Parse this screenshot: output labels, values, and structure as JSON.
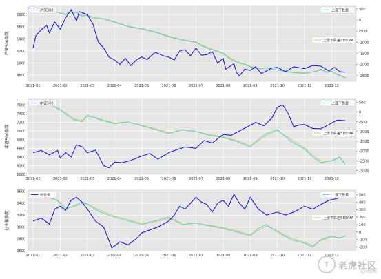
{
  "watermark": {
    "title": "老虎社区",
    "sub": "@闲闲"
  },
  "chart_data": [
    {
      "type": "line",
      "index_label": "沪深300",
      "ylabel_left": "沪深300指数",
      "ylim_left": [
        4700,
        5950
      ],
      "yticks_left": [
        4800,
        5000,
        5200,
        5400,
        5600,
        5800
      ],
      "ylim_right": [
        -2750,
        650
      ],
      "yticks_right": [
        500,
        0,
        -500,
        -1000,
        -1500,
        -2000,
        -2500
      ],
      "x_ticks": [
        "2021-01",
        "2021-02",
        "2021-03",
        "2021-04",
        "2021-05",
        "2021-06",
        "2021-07",
        "2021-08",
        "2021-09",
        "2021-10",
        "2021-11",
        "2021-12"
      ],
      "legend": [
        "上涨下跌差",
        "上涨下跌差5日EMA"
      ],
      "grid": true,
      "index_series": {
        "name": "沪深300",
        "x": [
          0.0,
          0.1,
          0.3,
          0.5,
          0.6,
          0.8,
          1.0,
          1.2,
          1.4,
          1.6,
          1.7,
          2.0,
          2.2,
          2.4,
          2.6,
          2.8,
          3.0,
          3.2,
          3.4,
          3.6,
          3.8,
          4.0,
          4.2,
          4.5,
          4.8,
          5.0,
          5.2,
          5.4,
          5.6,
          5.8,
          6.0,
          6.2,
          6.4,
          6.6,
          6.8,
          7.0,
          7.1,
          7.2,
          7.4,
          7.5,
          7.6,
          7.8,
          8.0,
          8.2,
          8.4,
          8.6,
          8.8,
          9.0,
          9.3,
          9.6,
          10.0,
          10.3,
          10.6,
          10.9,
          11.1,
          11.3,
          11.5
        ],
        "values": [
          5250,
          5450,
          5550,
          5620,
          5500,
          5680,
          5560,
          5750,
          5880,
          5700,
          5850,
          5800,
          5650,
          5350,
          5250,
          5100,
          5050,
          4980,
          5080,
          4960,
          5050,
          5100,
          5060,
          5180,
          5120,
          5100,
          5050,
          5200,
          5220,
          5120,
          5250,
          5130,
          5140,
          5190,
          5000,
          5080,
          4900,
          4930,
          4990,
          4840,
          4790,
          4900,
          4880,
          4940,
          4830,
          4870,
          4920,
          4930,
          4860,
          4940,
          4910,
          4960,
          4950,
          4870,
          4930,
          4860,
          4850
        ]
      },
      "diff_series": {
        "name": "上涨下跌差",
        "x": [
          0.0,
          0.2,
          0.4,
          0.6,
          0.8,
          1.0,
          1.2,
          1.4,
          1.6,
          1.8,
          2.0,
          2.3,
          2.6,
          3.0,
          3.5,
          4.0,
          4.5,
          5.0,
          5.5,
          6.0,
          6.2,
          6.5,
          7.0,
          7.2,
          7.5,
          7.8,
          8.0,
          8.3,
          8.6,
          9.0,
          9.5,
          10.0,
          10.4,
          10.6,
          10.8,
          11.0,
          11.2,
          11.5
        ],
        "values": [
          550,
          480,
          520,
          320,
          400,
          300,
          240,
          380,
          330,
          180,
          200,
          80,
          50,
          -100,
          -300,
          -400,
          -550,
          -750,
          -900,
          -1000,
          -1150,
          -1300,
          -1500,
          -1700,
          -1900,
          -2000,
          -2100,
          -2200,
          -2150,
          -2250,
          -2350,
          -2400,
          -2300,
          -2200,
          -2350,
          -2300,
          -2450,
          -2600
        ]
      },
      "ema_series": {
        "name": "上涨下跌差5日EMA",
        "x": [
          0.0,
          0.2,
          0.4,
          0.6,
          0.8,
          1.0,
          1.2,
          1.4,
          1.6,
          1.8,
          2.0,
          2.3,
          2.6,
          3.0,
          3.5,
          4.0,
          4.5,
          5.0,
          5.5,
          6.0,
          6.2,
          6.5,
          7.0,
          7.2,
          7.5,
          7.8,
          8.0,
          8.3,
          8.6,
          9.0,
          9.5,
          10.0,
          10.4,
          10.6,
          10.8,
          11.0,
          11.2,
          11.5
        ],
        "values": [
          520,
          500,
          500,
          360,
          380,
          320,
          260,
          350,
          330,
          210,
          210,
          100,
          60,
          -80,
          -280,
          -380,
          -530,
          -720,
          -880,
          -980,
          -1120,
          -1270,
          -1470,
          -1660,
          -1860,
          -1970,
          -2070,
          -2170,
          -2160,
          -2230,
          -2330,
          -2380,
          -2310,
          -2230,
          -2320,
          -2300,
          -2420,
          -2560
        ]
      }
    },
    {
      "type": "line",
      "index_label": "中证500",
      "ylabel_left": "中证500指数",
      "ylim_left": [
        6000,
        7750
      ],
      "yticks_left": [
        6000,
        6200,
        6400,
        6600,
        6800,
        7000,
        7200,
        7400,
        7600
      ],
      "ylim_right": [
        -3200,
        700
      ],
      "yticks_right": [
        500,
        0,
        -500,
        -1000,
        -1500,
        -2000,
        -2500,
        -3000
      ],
      "x_ticks": [
        "2021-01",
        "2021-02",
        "2021-03",
        "2021-04",
        "2021-05",
        "2021-06",
        "2021-07",
        "2021-08",
        "2021-09",
        "2021-10",
        "2021-11",
        "2021-12"
      ],
      "legend": [
        "上涨下跌差",
        "上涨下跌差5日EMA"
      ],
      "grid": true,
      "index_series": {
        "name": "中证500",
        "x": [
          0.0,
          0.3,
          0.6,
          0.9,
          1.0,
          1.2,
          1.4,
          1.6,
          1.8,
          2.0,
          2.3,
          2.6,
          2.8,
          3.0,
          3.3,
          3.6,
          4.0,
          4.3,
          4.6,
          5.0,
          5.3,
          5.6,
          6.0,
          6.3,
          6.6,
          7.0,
          7.3,
          7.6,
          7.9,
          8.2,
          8.5,
          8.8,
          9.0,
          9.2,
          9.4,
          9.6,
          9.8,
          10.0,
          10.3,
          10.6,
          10.9,
          11.2,
          11.5
        ],
        "values": [
          6500,
          6550,
          6450,
          6550,
          6380,
          6500,
          6400,
          6680,
          6640,
          6500,
          6560,
          6200,
          6150,
          6280,
          6270,
          6320,
          6420,
          6480,
          6350,
          6500,
          6570,
          6630,
          6600,
          6780,
          6720,
          6920,
          6900,
          7000,
          7100,
          7200,
          7120,
          7300,
          7550,
          7600,
          7400,
          7100,
          7140,
          7150,
          7060,
          7050,
          7150,
          7250,
          7240
        ]
      },
      "diff_series": {
        "name": "上涨下跌差",
        "x": [
          0.0,
          0.3,
          0.6,
          0.9,
          1.2,
          1.5,
          1.8,
          2.0,
          2.3,
          2.6,
          3.0,
          3.5,
          4.0,
          4.5,
          5.0,
          5.5,
          6.0,
          6.5,
          7.0,
          7.5,
          8.0,
          8.3,
          8.6,
          9.0,
          9.5,
          10.0,
          10.3,
          10.6,
          11.0,
          11.3,
          11.5
        ],
        "values": [
          350,
          300,
          380,
          200,
          -100,
          -400,
          -500,
          -150,
          -300,
          -450,
          -600,
          -500,
          -700,
          -900,
          -1100,
          -900,
          -1000,
          -1200,
          -1300,
          -1500,
          -1800,
          -1400,
          -1100,
          -900,
          -1500,
          -1900,
          -2300,
          -2600,
          -2500,
          -2300,
          -2700
        ]
      },
      "ema_series": {
        "name": "上涨下跌差5日EMA",
        "x": [
          0.0,
          0.3,
          0.6,
          0.9,
          1.2,
          1.5,
          1.8,
          2.0,
          2.3,
          2.6,
          3.0,
          3.5,
          4.0,
          4.5,
          5.0,
          5.5,
          6.0,
          6.5,
          7.0,
          7.5,
          8.0,
          8.3,
          8.6,
          9.0,
          9.5,
          10.0,
          10.3,
          10.6,
          11.0,
          11.3,
          11.5
        ],
        "values": [
          330,
          310,
          350,
          230,
          -40,
          -330,
          -450,
          -230,
          -280,
          -420,
          -560,
          -510,
          -660,
          -860,
          -1050,
          -930,
          -990,
          -1160,
          -1270,
          -1460,
          -1730,
          -1480,
          -1180,
          -950,
          -1400,
          -1830,
          -2220,
          -2520,
          -2500,
          -2360,
          -2620
        ]
      }
    },
    {
      "type": "line",
      "index_label": "创业板",
      "ylabel_left": "创业板指数",
      "ylim_left": [
        2600,
        3620
      ],
      "yticks_left": [
        2600,
        2800,
        3000,
        3200,
        3400,
        3600
      ],
      "ylim_right": [
        -250,
        560
      ],
      "yticks_right": [
        500,
        400,
        300,
        200,
        100,
        0,
        -100,
        -200
      ],
      "x_ticks": [
        "2021-01",
        "2021-02",
        "2021-03",
        "2021-04",
        "2021-05",
        "2021-06",
        "2021-07",
        "2021-08",
        "2021-09",
        "2021-10",
        "2021-11",
        "2021-12"
      ],
      "legend": [
        "上涨下跌差",
        "上涨下跌差5日EMA"
      ],
      "grid": true,
      "index_series": {
        "name": "创业板",
        "x": [
          0.0,
          0.3,
          0.6,
          0.8,
          1.0,
          1.2,
          1.4,
          1.6,
          1.8,
          2.0,
          2.3,
          2.6,
          2.9,
          3.2,
          3.5,
          3.8,
          4.0,
          4.3,
          4.6,
          5.0,
          5.2,
          5.4,
          5.6,
          5.8,
          6.0,
          6.2,
          6.4,
          6.6,
          6.8,
          7.0,
          7.2,
          7.4,
          7.6,
          7.8,
          8.0,
          8.3,
          8.6,
          9.0,
          9.3,
          9.6,
          10.0,
          10.3,
          10.6,
          10.9,
          11.2,
          11.5
        ],
        "values": [
          3100,
          3150,
          3050,
          3300,
          3350,
          3280,
          3450,
          3500,
          3420,
          3300,
          3100,
          3000,
          2650,
          2750,
          2700,
          2800,
          2900,
          2950,
          3000,
          3100,
          3200,
          3350,
          3300,
          3400,
          3500,
          3420,
          3380,
          3250,
          3400,
          3450,
          3350,
          3550,
          3400,
          3300,
          3500,
          3300,
          3200,
          3250,
          3200,
          3250,
          3350,
          3300,
          3380,
          3450,
          3480,
          3520
        ]
      },
      "diff_series": {
        "name": "上涨下跌差",
        "x": [
          0.0,
          0.3,
          0.6,
          0.9,
          1.2,
          1.5,
          1.8,
          2.0,
          2.3,
          2.6,
          3.0,
          3.5,
          4.0,
          4.5,
          5.0,
          5.5,
          6.0,
          6.5,
          7.0,
          7.5,
          8.0,
          8.3,
          8.6,
          9.0,
          9.5,
          10.0,
          10.3,
          10.6,
          11.0,
          11.3,
          11.5
        ],
        "values": [
          500,
          480,
          460,
          420,
          300,
          350,
          400,
          380,
          300,
          250,
          200,
          150,
          100,
          150,
          200,
          100,
          120,
          80,
          50,
          0,
          -50,
          50,
          100,
          0,
          -100,
          -150,
          -200,
          -100,
          -50,
          -80,
          -50
        ]
      },
      "ema_series": {
        "name": "上涨下跌差5日EMA",
        "x": [
          0.0,
          0.3,
          0.6,
          0.9,
          1.2,
          1.5,
          1.8,
          2.0,
          2.3,
          2.6,
          3.0,
          3.5,
          4.0,
          4.5,
          5.0,
          5.5,
          6.0,
          6.5,
          7.0,
          7.5,
          8.0,
          8.3,
          8.6,
          9.0,
          9.5,
          10.0,
          10.3,
          10.6,
          11.0,
          11.3,
          11.5
        ],
        "values": [
          480,
          470,
          460,
          430,
          330,
          340,
          380,
          375,
          320,
          270,
          215,
          165,
          115,
          140,
          180,
          120,
          120,
          90,
          60,
          15,
          -35,
          25,
          80,
          15,
          -80,
          -135,
          -185,
          -115,
          -65,
          -75,
          -55
        ]
      }
    }
  ]
}
